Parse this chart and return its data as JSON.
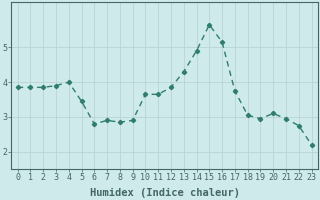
{
  "x": [
    0,
    1,
    2,
    3,
    4,
    5,
    6,
    7,
    8,
    9,
    10,
    11,
    12,
    13,
    14,
    15,
    16,
    17,
    18,
    19,
    20,
    21,
    22,
    23
  ],
  "y": [
    3.85,
    3.85,
    3.85,
    3.9,
    4.0,
    3.45,
    2.8,
    2.9,
    2.85,
    2.9,
    3.65,
    3.65,
    3.85,
    4.3,
    4.9,
    5.65,
    5.15,
    3.75,
    3.05,
    2.95,
    3.1,
    2.95,
    2.75,
    2.2
  ],
  "line_color": "#2e7d6e",
  "marker": "D",
  "marker_size": 2.2,
  "linewidth": 1.0,
  "xlabel": "Humidex (Indice chaleur)",
  "xlabel_fontsize": 7.5,
  "xlabel_fontweight": "bold",
  "bg_color": "#ceeaea",
  "grid_color": "#b8d4d4",
  "axis_color": "#446666",
  "ylim": [
    1.5,
    6.3
  ],
  "xlim": [
    -0.5,
    23.5
  ],
  "yticks": [
    2,
    3,
    4,
    5
  ],
  "xticks": [
    0,
    1,
    2,
    3,
    4,
    5,
    6,
    7,
    8,
    9,
    10,
    11,
    12,
    13,
    14,
    15,
    16,
    17,
    18,
    19,
    20,
    21,
    22,
    23
  ],
  "tick_fontsize": 6.0
}
